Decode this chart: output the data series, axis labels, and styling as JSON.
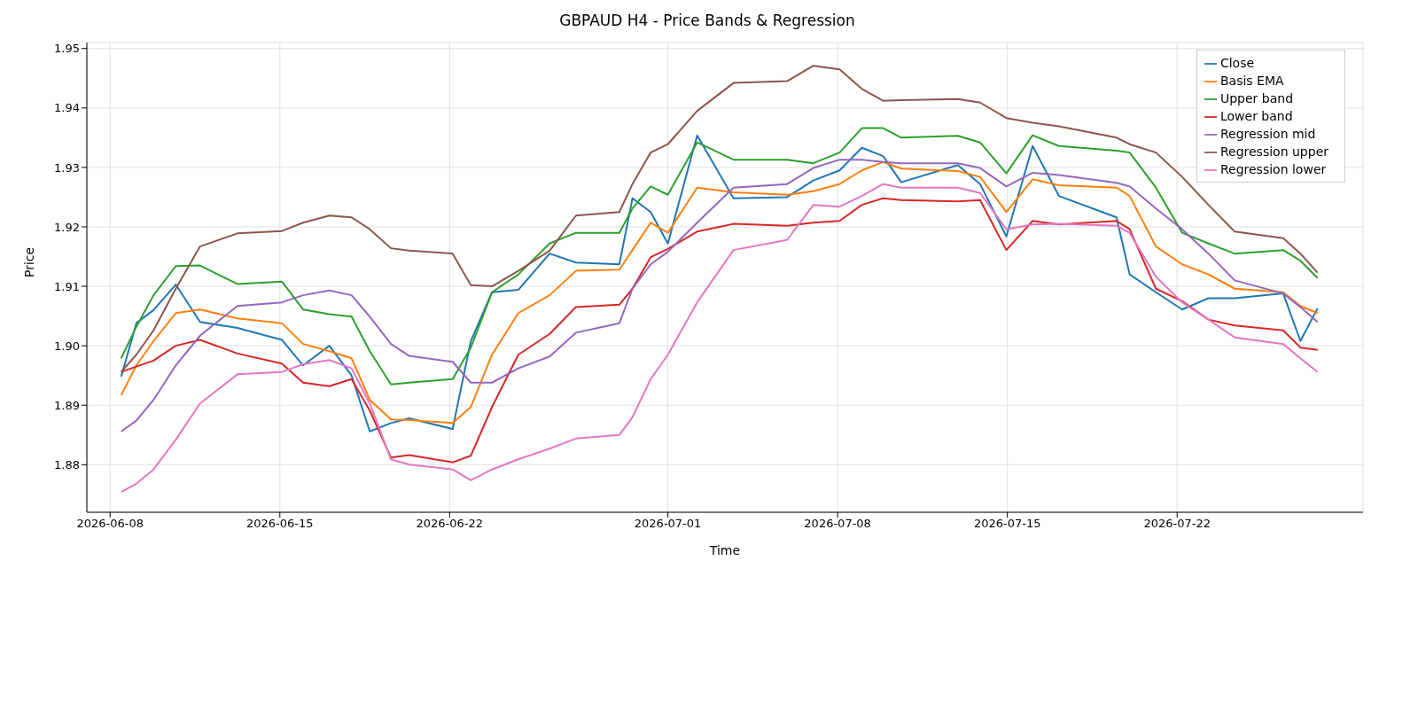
{
  "chart_data": {
    "type": "line",
    "title": "GBPAUD H4 - Price Bands & Regression",
    "xlabel": "Time",
    "ylabel": "Price",
    "x": [
      "2026-06-08T11:00",
      "2026-06-09T02:00",
      "2026-06-09T19:00",
      "2026-06-10T17:00",
      "2026-06-11T17:00",
      "2026-06-13T06:00",
      "2026-06-15T02:00",
      "2026-06-15T23:00",
      "2026-06-17T01:00",
      "2026-06-17T23:00",
      "2026-06-18T17:00",
      "2026-06-19T14:00",
      "2026-06-20T08:00",
      "2026-06-22T03:00",
      "2026-06-22T21:00",
      "2026-06-23T18:00",
      "2026-06-24T20:00",
      "2026-06-26T03:00",
      "2026-06-27T05:00",
      "2026-06-29T00:00",
      "2026-06-29T13:00",
      "2026-06-30T07:00",
      "2026-07-01T00:00",
      "2026-07-02T05:00",
      "2026-07-03T17:00",
      "2026-07-05T22:00",
      "2026-07-07T00:00",
      "2026-07-08T02:00",
      "2026-07-09T00:00",
      "2026-07-09T21:00",
      "2026-07-10T15:00",
      "2026-07-12T23:00",
      "2026-07-13T21:00",
      "2026-07-14T23:00",
      "2026-07-16T01:00",
      "2026-07-17T03:00",
      "2026-07-19T12:00",
      "2026-07-20T01:00",
      "2026-07-21T03:00",
      "2026-07-22T05:00",
      "2026-07-23T07:00",
      "2026-07-24T09:00",
      "2026-07-26T09:00",
      "2026-07-27T02:00",
      "2026-07-27T19:00"
    ],
    "series": [
      {
        "name": "Close",
        "color": "#1f77b4",
        "values": [
          1.8948,
          1.9038,
          1.906,
          1.9103,
          1.904,
          1.903,
          1.901,
          1.8967,
          1.9,
          1.895,
          1.8856,
          1.887,
          1.8878,
          1.886,
          1.9008,
          1.909,
          1.9094,
          1.9155,
          1.914,
          1.9137,
          1.9248,
          1.9225,
          1.9172,
          1.9354,
          1.9248,
          1.925,
          1.9278,
          1.9295,
          1.9333,
          1.9319,
          1.9275,
          1.9304,
          1.9272,
          1.9184,
          1.9336,
          1.9252,
          1.9216,
          1.912,
          1.909,
          1.9061,
          1.908,
          1.908,
          1.9088,
          1.9008,
          1.9063
        ]
      },
      {
        "name": "Basis EMA",
        "color": "#ff7f0e",
        "values": [
          1.8917,
          1.8967,
          1.9008,
          1.9055,
          1.9061,
          1.9046,
          1.9038,
          1.9003,
          1.8991,
          1.8979,
          1.8909,
          1.8876,
          1.8875,
          1.887,
          1.8897,
          1.8985,
          1.9055,
          1.9085,
          1.9126,
          1.9128,
          1.9161,
          1.9207,
          1.919,
          1.9266,
          1.9258,
          1.9254,
          1.926,
          1.9272,
          1.9295,
          1.9309,
          1.9298,
          1.9294,
          1.9284,
          1.9225,
          1.928,
          1.927,
          1.9266,
          1.9252,
          1.9167,
          1.9137,
          1.912,
          1.9096,
          1.909,
          1.9067,
          1.9055
        ]
      },
      {
        "name": "Upper band",
        "color": "#2ca02c",
        "values": [
          1.8979,
          1.9032,
          1.9085,
          1.9134,
          1.9135,
          1.9104,
          1.9108,
          1.9061,
          1.9053,
          1.9049,
          1.8991,
          1.8935,
          1.8938,
          1.8944,
          1.8997,
          1.909,
          1.912,
          1.9172,
          1.919,
          1.919,
          1.9231,
          1.9268,
          1.9254,
          1.9342,
          1.9313,
          1.9313,
          1.9307,
          1.9325,
          1.9366,
          1.9366,
          1.935,
          1.9353,
          1.9342,
          1.929,
          1.9354,
          1.9336,
          1.9328,
          1.9325,
          1.9266,
          1.919,
          1.9172,
          1.9155,
          1.9161,
          1.9143,
          1.9114
        ]
      },
      {
        "name": "Lower band",
        "color": "#d62728",
        "values": [
          1.8956,
          1.8965,
          1.8975,
          1.9,
          1.901,
          1.8987,
          1.897,
          1.8938,
          1.8932,
          1.8944,
          1.8891,
          1.8812,
          1.8816,
          1.8804,
          1.8815,
          1.8897,
          1.8985,
          1.902,
          1.9065,
          1.9069,
          1.9096,
          1.9149,
          1.9163,
          1.9192,
          1.9205,
          1.9202,
          1.9207,
          1.921,
          1.9237,
          1.9248,
          1.9245,
          1.9243,
          1.9245,
          1.9161,
          1.921,
          1.9204,
          1.921,
          1.9196,
          1.9096,
          1.9075,
          1.9044,
          1.9034,
          1.9026,
          1.8997,
          1.8993
        ]
      },
      {
        "name": "Regression mid",
        "color": "#9467bd",
        "values": [
          1.8856,
          1.8874,
          1.8909,
          1.8967,
          1.9017,
          1.9067,
          1.9073,
          1.9085,
          1.9093,
          1.9085,
          1.9049,
          1.9003,
          1.8983,
          1.8973,
          1.8938,
          1.8938,
          1.8962,
          1.8982,
          1.9022,
          1.9038,
          1.9096,
          1.9137,
          1.9158,
          1.9207,
          1.9266,
          1.9272,
          1.9299,
          1.9313,
          1.9313,
          1.9309,
          1.9307,
          1.9307,
          1.9299,
          1.9268,
          1.9291,
          1.9287,
          1.9274,
          1.9268,
          1.9231,
          1.9196,
          1.9155,
          1.911,
          1.9088,
          1.9065,
          1.904
        ]
      },
      {
        "name": "Regression upper",
        "color": "#8c564b",
        "values": [
          1.8956,
          1.8985,
          1.9026,
          1.9096,
          1.9167,
          1.9189,
          1.9193,
          1.9207,
          1.9219,
          1.9216,
          1.9196,
          1.9164,
          1.916,
          1.9155,
          1.9102,
          1.91,
          1.9126,
          1.916,
          1.9219,
          1.9225,
          1.9272,
          1.9325,
          1.9339,
          1.9395,
          1.9442,
          1.9445,
          1.9471,
          1.9465,
          1.9432,
          1.9412,
          1.9413,
          1.9415,
          1.9409,
          1.9383,
          1.9375,
          1.9369,
          1.935,
          1.9339,
          1.9325,
          1.9284,
          1.9237,
          1.9192,
          1.9181,
          1.9155,
          1.9123
        ]
      },
      {
        "name": "Regression lower",
        "color": "#e377c2",
        "values": [
          1.8754,
          1.8768,
          1.8792,
          1.8842,
          1.8903,
          1.8952,
          1.8956,
          1.8969,
          1.8976,
          1.8962,
          1.8903,
          1.8809,
          1.88,
          1.8792,
          1.8774,
          1.8792,
          1.8809,
          1.8827,
          1.8844,
          1.885,
          1.888,
          1.8944,
          1.8985,
          1.9073,
          1.9161,
          1.9178,
          1.9237,
          1.9234,
          1.9252,
          1.9272,
          1.9266,
          1.9266,
          1.9257,
          1.9196,
          1.9204,
          1.9205,
          1.9202,
          1.919,
          1.9116,
          1.9073,
          1.9044,
          1.9014,
          1.9003,
          1.8979,
          1.8956
        ]
      }
    ],
    "xlim": [
      "2026-06-07T01:00",
      "2026-07-29T16:00"
    ],
    "xticks": [
      {
        "value": "2026-06-08",
        "label": "2026-06-08"
      },
      {
        "value": "2026-06-15",
        "label": "2026-06-15"
      },
      {
        "value": "2026-06-22",
        "label": "2026-06-22"
      },
      {
        "value": "2026-07-01",
        "label": "2026-07-01"
      },
      {
        "value": "2026-07-08",
        "label": "2026-07-08"
      },
      {
        "value": "2026-07-15",
        "label": "2026-07-15"
      },
      {
        "value": "2026-07-22",
        "label": "2026-07-22"
      }
    ],
    "ylim": [
      1.872,
      1.951
    ],
    "yticks": [
      {
        "value": 1.88,
        "label": "1.88"
      },
      {
        "value": 1.89,
        "label": "1.89"
      },
      {
        "value": 1.9,
        "label": "1.90"
      },
      {
        "value": 1.91,
        "label": "1.91"
      },
      {
        "value": 1.92,
        "label": "1.92"
      },
      {
        "value": 1.93,
        "label": "1.93"
      },
      {
        "value": 1.94,
        "label": "1.94"
      },
      {
        "value": 1.95,
        "label": "1.95"
      }
    ],
    "grid": true,
    "legend": "top right"
  }
}
